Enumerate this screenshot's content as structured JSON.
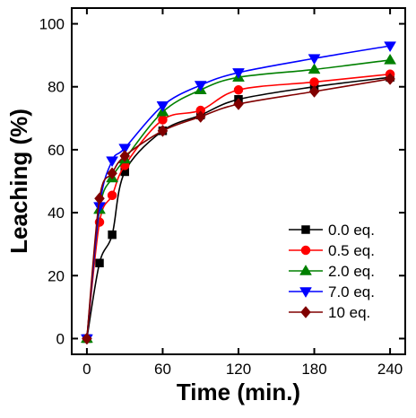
{
  "chart_data": {
    "type": "line",
    "title": "",
    "xlabel": "Time (min.)",
    "ylabel": "Leaching (%)",
    "xlim": [
      -12,
      252
    ],
    "ylim": [
      -5,
      105
    ],
    "xticks": [
      0,
      60,
      120,
      180,
      240
    ],
    "yticks": [
      0,
      20,
      40,
      60,
      80,
      100
    ],
    "x_tick_labels": [
      "0",
      "60",
      "120",
      "180",
      "240"
    ],
    "y_tick_labels": [
      "0",
      "20",
      "40",
      "60",
      "80",
      "100"
    ],
    "grid": false,
    "legend_position": "bottom-right",
    "x": [
      0,
      10,
      20,
      30,
      60,
      90,
      120,
      180,
      240
    ],
    "series": [
      {
        "name": "0.0 eq.",
        "color": "#000000",
        "marker": "square",
        "values": [
          0,
          24,
          33,
          53,
          66,
          71,
          76,
          80,
          83
        ]
      },
      {
        "name": "0.5 eq.",
        "color": "#ff0000",
        "marker": "circle",
        "values": [
          0,
          37,
          45.5,
          55,
          69.5,
          72.5,
          79,
          81.5,
          84
        ]
      },
      {
        "name": "2.0 eq.",
        "color": "#008000",
        "marker": "triangle-up",
        "values": [
          0,
          41,
          51,
          57,
          72,
          79,
          83,
          85.5,
          88.5
        ]
      },
      {
        "name": "7.0 eq.",
        "color": "#0000ff",
        "marker": "triangle-down",
        "values": [
          0,
          42,
          56.5,
          60.5,
          74,
          80.5,
          84.5,
          89,
          93
        ]
      },
      {
        "name": "10  eq.",
        "color": "#800000",
        "marker": "diamond",
        "values": [
          0,
          44.5,
          52.5,
          58,
          66,
          70.5,
          74.5,
          78.5,
          82.5
        ]
      }
    ]
  }
}
